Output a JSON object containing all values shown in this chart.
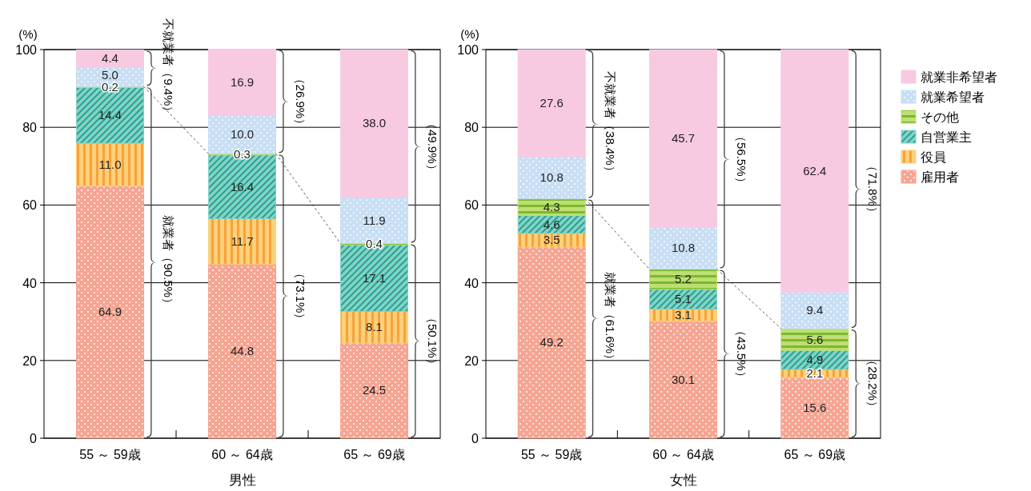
{
  "chart_data": [
    {
      "type": "bar",
      "stacked": true,
      "xlabel": "男性",
      "ylabel": "(%)",
      "categories": [
        "55 ～ 59歳",
        "60 ～ 64歳",
        "65 ～ 69歳"
      ],
      "ylim": [
        0,
        100
      ],
      "yticks": [
        0,
        20,
        40,
        60,
        80,
        100
      ],
      "grid": "y",
      "series": [
        {
          "color": "#f6a592",
          "values": [
            64.9,
            44.8,
            24.5
          ],
          "value_labels": [
            "64.9",
            "44.8",
            "24.5"
          ]
        },
        {
          "color": "#fdd07a",
          "values": [
            11.0,
            11.7,
            8.1
          ],
          "value_labels": [
            "11.0",
            "11.7",
            "8.1"
          ]
        },
        {
          "color": "#86d3c6",
          "values": [
            14.4,
            16.4,
            17.1
          ],
          "value_labels": [
            "14.4",
            "16.4",
            "17.1"
          ]
        },
        {
          "color": "#bddf72",
          "values": [
            0.2,
            0.3,
            0.4
          ],
          "value_labels": [
            "0.2",
            "0.3",
            "0.4"
          ]
        },
        {
          "color": "#c8def4",
          "values": [
            5.0,
            10.0,
            11.9
          ],
          "value_labels": [
            "5.0",
            "10.0",
            "11.9"
          ]
        },
        {
          "color": "#f8cae2",
          "values": [
            4.4,
            16.9,
            38.0
          ],
          "value_labels": [
            "4.4",
            "16.9",
            "38.0"
          ]
        }
      ],
      "annotations": [
        "不就業者（9.4%）",
        "就業者（90.5%）",
        "（26.9%）",
        "（73.1%）",
        "（49.9%）",
        "（50.1%）"
      ]
    },
    {
      "type": "bar",
      "stacked": true,
      "xlabel": "女性",
      "ylabel": "(%)",
      "categories": [
        "55 ～ 59歳",
        "60 ～ 64歳",
        "65 ～ 69歳"
      ],
      "ylim": [
        0,
        100
      ],
      "yticks": [
        0,
        20,
        40,
        60,
        80,
        100
      ],
      "grid": "y",
      "legend": "right",
      "series": [
        {
          "name": "雇用者",
          "color": "#f6a592",
          "values": [
            49.2,
            30.1,
            15.6
          ],
          "value_labels": [
            "49.2",
            "30.1",
            "15.6"
          ]
        },
        {
          "name": "役員",
          "color": "#fdd07a",
          "values": [
            3.5,
            3.1,
            2.1
          ],
          "value_labels": [
            "3.5",
            "3.1",
            "2.1"
          ]
        },
        {
          "name": "自営業主",
          "color": "#86d3c6",
          "values": [
            4.6,
            5.1,
            4.9
          ],
          "value_labels": [
            "4.6",
            "5.1",
            "4.9"
          ]
        },
        {
          "name": "その他",
          "color": "#bddf72",
          "values": [
            4.3,
            5.2,
            5.6
          ],
          "value_labels": [
            "4.3",
            "5.2",
            "5.6"
          ]
        },
        {
          "name": "就業希望者",
          "color": "#c8def4",
          "values": [
            10.8,
            10.8,
            9.4
          ],
          "value_labels": [
            "10.8",
            "10.8",
            "9.4"
          ]
        },
        {
          "name": "就業非希望者",
          "color": "#f8cae2",
          "values": [
            27.6,
            45.7,
            62.4
          ],
          "value_labels": [
            "27.6",
            "45.7",
            "62.4"
          ]
        }
      ],
      "annotations": [
        "不就業者（38.4%）",
        "就業者（61.6%）",
        "（56.5%）",
        "（43.5%）",
        "（71.8%）",
        "（28.2%）"
      ]
    }
  ]
}
